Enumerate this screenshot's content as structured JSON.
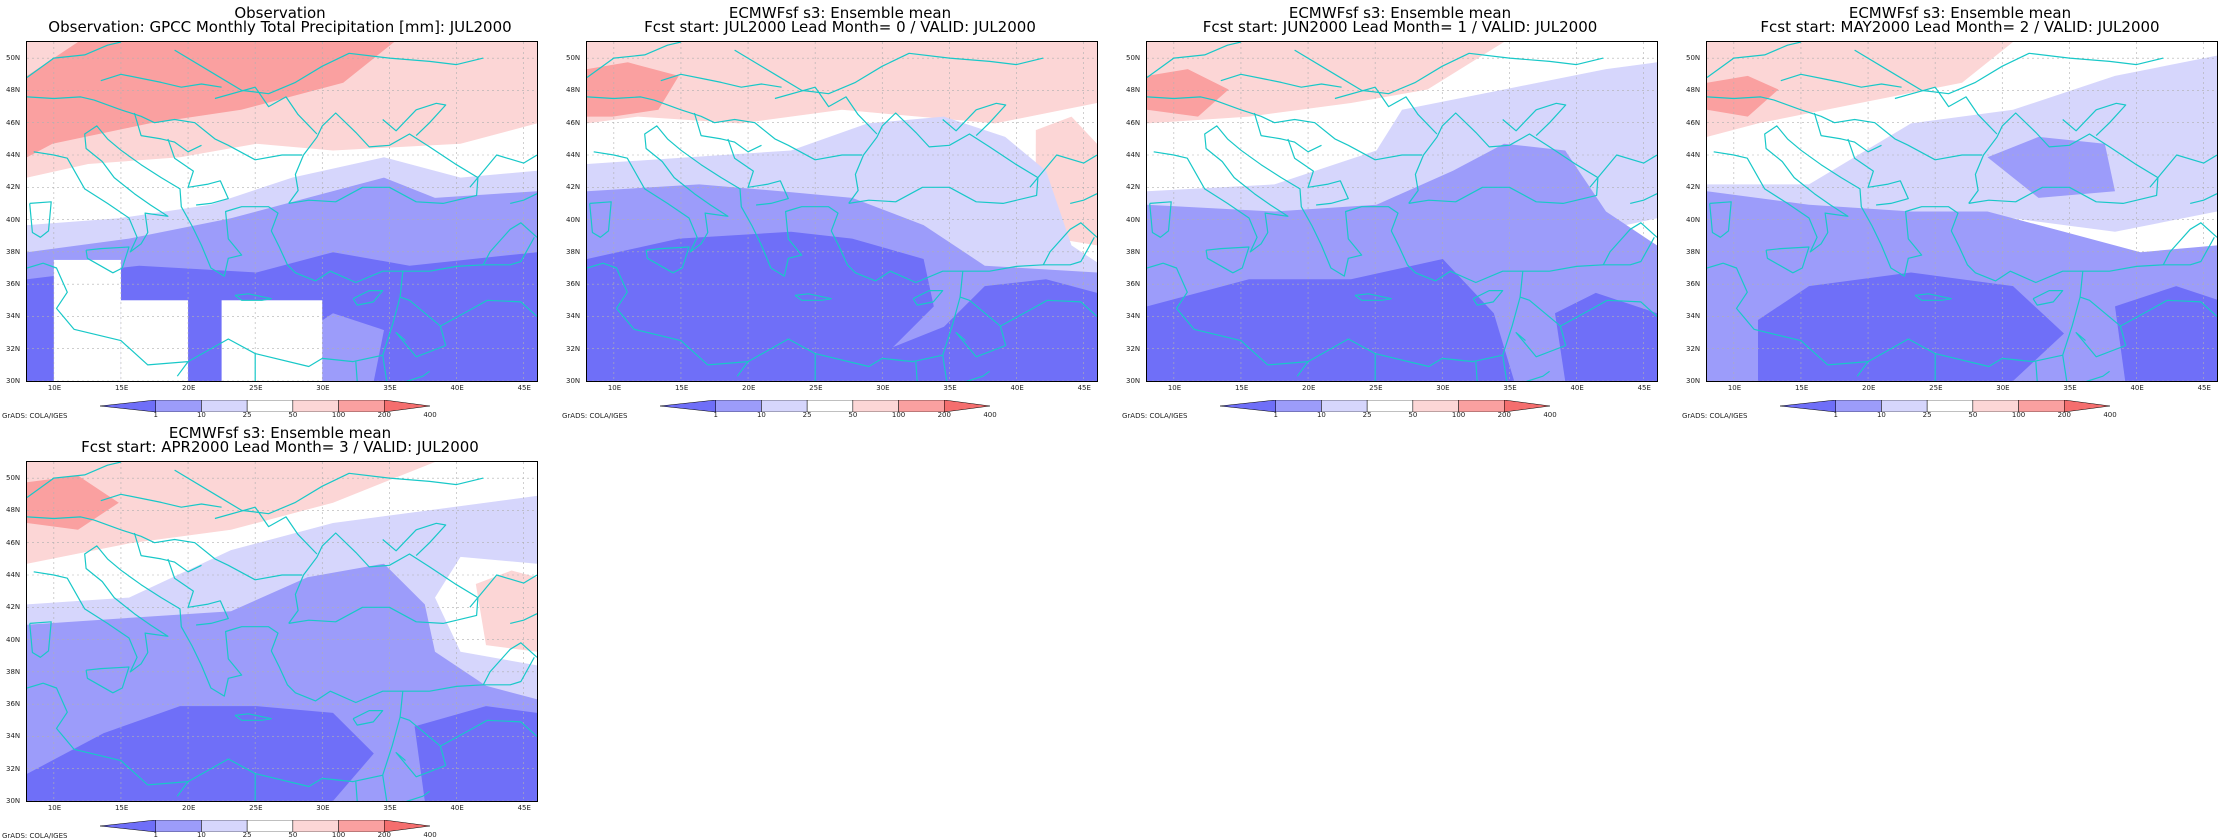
{
  "panels": [
    {
      "title_line1": "Observation",
      "title_line2": "Observation: GPCC Monthly Total Precipitation [mm]: JUL2000",
      "missing_boxes": true
    },
    {
      "title_line1": "ECMWFsf s3: Ensemble mean",
      "title_line2": "Fcst start: JUL2000   Lead Month= 0 / VALID: JUL2000",
      "missing_boxes": false
    },
    {
      "title_line1": "ECMWFsf s3: Ensemble mean",
      "title_line2": "Fcst start: JUN2000   Lead Month= 1 / VALID: JUL2000",
      "missing_boxes": false
    },
    {
      "title_line1": "ECMWFsf s3: Ensemble mean",
      "title_line2": "Fcst start: MAY2000   Lead Month= 2 / VALID: JUL2000",
      "missing_boxes": false
    },
    {
      "title_line1": "ECMWFsf s3: Ensemble mean",
      "title_line2": "Fcst start: APR2000   Lead Month= 3 / VALID: JUL2000",
      "missing_boxes": false
    }
  ],
  "map": {
    "lon_range": [
      8,
      46
    ],
    "lat_range": [
      30,
      51
    ],
    "lon_ticks": [
      "10E",
      "15E",
      "20E",
      "25E",
      "30E",
      "35E",
      "40E",
      "45E"
    ],
    "lon_tick_values": [
      10,
      15,
      20,
      25,
      30,
      35,
      40,
      45
    ],
    "lat_ticks": [
      "30N",
      "32N",
      "34N",
      "36N",
      "38N",
      "40N",
      "42N",
      "44N",
      "46N",
      "48N",
      "50N"
    ],
    "lat_tick_values": [
      30,
      32,
      34,
      36,
      38,
      40,
      42,
      44,
      46,
      48,
      50
    ],
    "grid": true
  },
  "colorbar": {
    "labels": [
      "1",
      "10",
      "25",
      "50",
      "100",
      "200",
      "400"
    ],
    "colors": [
      "#6f6ff8",
      "#9c9cfa",
      "#d6d6fc",
      "#ffffff",
      "#fcd6d6",
      "#faa0a0",
      "#f46e6e"
    ]
  },
  "credit": "GrADS: COLA/IGES",
  "colors": {
    "coastline": "#18c8c8",
    "grid": "#b0b0b0"
  }
}
